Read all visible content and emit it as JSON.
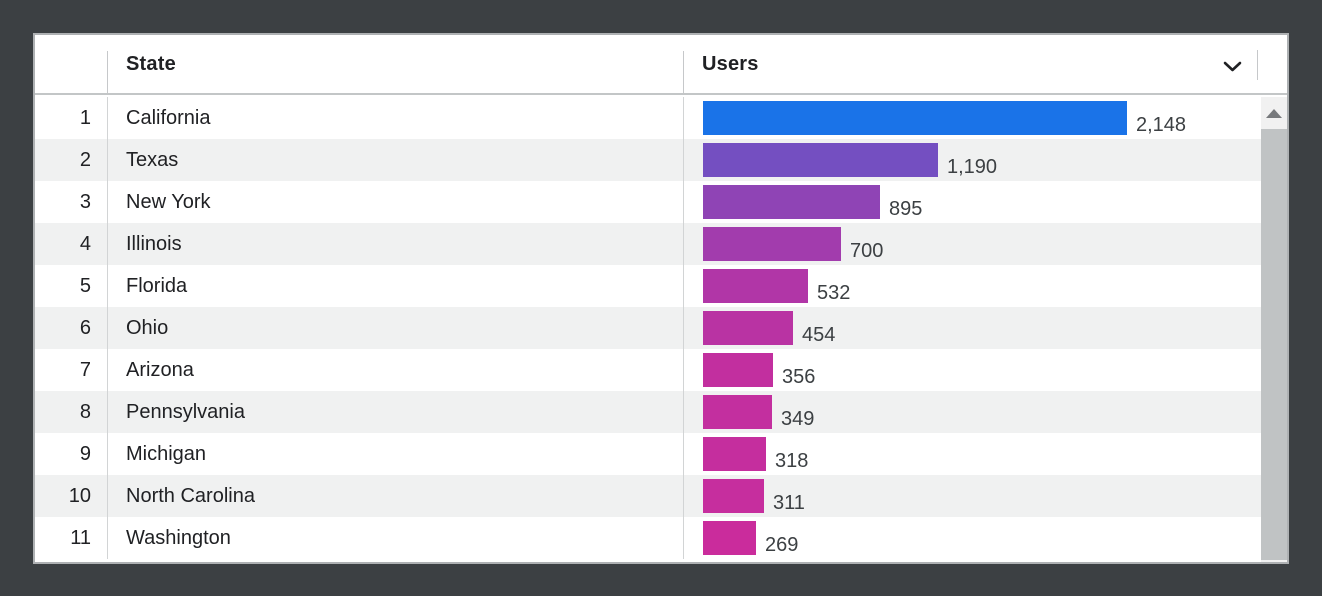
{
  "widget": {
    "title": "Users by State table widget",
    "header": {
      "rank_label": "",
      "state_label": "State",
      "users_label": "Users",
      "sort_icon": "chevron-down-icon"
    },
    "rows": [
      {
        "rank": "1",
        "state": "California",
        "users_display": "2,148",
        "users_value": 2148,
        "bar_color": "#1a73e8"
      },
      {
        "rank": "2",
        "state": "Texas",
        "users_display": "1,190",
        "users_value": 1190,
        "bar_color": "#744fc1"
      },
      {
        "rank": "3",
        "state": "New York",
        "users_display": "895",
        "users_value": 895,
        "bar_color": "#8f44b5"
      },
      {
        "rank": "4",
        "state": "Illinois",
        "users_display": "700",
        "users_value": 700,
        "bar_color": "#a23cad"
      },
      {
        "rank": "5",
        "state": "Florida",
        "users_display": "532",
        "users_value": 532,
        "bar_color": "#b136a7"
      },
      {
        "rank": "6",
        "state": "Ohio",
        "users_display": "454",
        "users_value": 454,
        "bar_color": "#b933a3"
      },
      {
        "rank": "7",
        "state": "Arizona",
        "users_display": "356",
        "users_value": 356,
        "bar_color": "#c22f9f"
      },
      {
        "rank": "8",
        "state": "Pennsylvania",
        "users_display": "349",
        "users_value": 349,
        "bar_color": "#c32f9f"
      },
      {
        "rank": "9",
        "state": "Michigan",
        "users_display": "318",
        "users_value": 318,
        "bar_color": "#c52e9e"
      },
      {
        "rank": "10",
        "state": "North Carolina",
        "users_display": "311",
        "users_value": 311,
        "bar_color": "#c62e9e"
      },
      {
        "rank": "11",
        "state": "Washington",
        "users_display": "269",
        "users_value": 269,
        "bar_color": "#ca2c9c"
      }
    ],
    "scrollbar": {
      "up_arrow_icon": "triangle-up-icon"
    }
  },
  "colors": {
    "outer_background": "#3c4043",
    "card_background": "#ffffff",
    "alt_row_background": "#f0f1f1",
    "bar_gradient_max": "#1a73e8",
    "bar_gradient_min": "#ca2c9c",
    "text": "#202124"
  },
  "chart_data": {
    "type": "bar",
    "orientation": "horizontal",
    "title": "Users by State",
    "categories": [
      "California",
      "Texas",
      "New York",
      "Illinois",
      "Florida",
      "Ohio",
      "Arizona",
      "Pennsylvania",
      "Michigan",
      "North Carolina",
      "Washington"
    ],
    "values": [
      2148,
      1190,
      895,
      700,
      532,
      454,
      356,
      349,
      318,
      311,
      269
    ],
    "value_labels": [
      "2,148",
      "1,190",
      "895",
      "700",
      "532",
      "454",
      "356",
      "349",
      "318",
      "311",
      "269"
    ],
    "ranks": [
      1,
      2,
      3,
      4,
      5,
      6,
      7,
      8,
      9,
      10,
      11
    ],
    "xlabel": "Users",
    "ylabel": "State",
    "xlim": [
      0,
      2148
    ],
    "grid": false,
    "legend": false,
    "color_encoding": "bar color interpolates from #1a73e8 (highest value) to #ca2c9c (lowest value)"
  }
}
